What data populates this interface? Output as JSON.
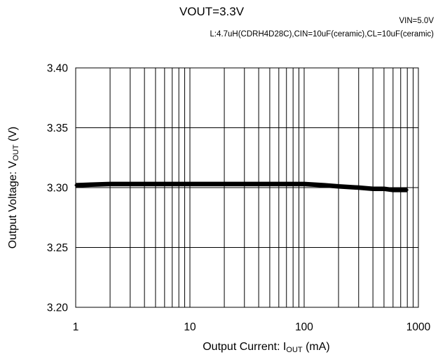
{
  "chart_data": {
    "type": "line",
    "title": "VOUT=3.3V",
    "subtitle_right": "VIN=5.0V",
    "subtitle": "L:4.7uH(CDRH4D28C),CIN=10uF(ceramic),CL=10uF(ceramic)",
    "xlabel": {
      "prefix": "Output Current: I",
      "sub": "OUT",
      "suffix": " (mA)"
    },
    "ylabel": {
      "prefix": "Output Voltage: V",
      "sub": "OUT",
      "suffix": " (V)"
    },
    "x_scale": "log",
    "xlim": [
      1,
      1000
    ],
    "ylim": [
      3.2,
      3.4
    ],
    "x_ticks": [
      1,
      10,
      100,
      1000
    ],
    "x_tick_labels": [
      "1",
      "10",
      "100",
      "1000"
    ],
    "y_ticks": [
      3.2,
      3.25,
      3.3,
      3.35,
      3.4
    ],
    "y_tick_labels": [
      "3.20",
      "3.25",
      "3.30",
      "3.35",
      "3.40"
    ],
    "grid": true,
    "series": [
      {
        "color": "#000000",
        "x": [
          1,
          2,
          3,
          5,
          7,
          10,
          20,
          50,
          100,
          150,
          200,
          300,
          400,
          500,
          600,
          800
        ],
        "y": [
          3.302,
          3.303,
          3.303,
          3.303,
          3.303,
          3.303,
          3.303,
          3.303,
          3.303,
          3.302,
          3.301,
          3.3,
          3.299,
          3.299,
          3.298,
          3.298
        ]
      }
    ]
  }
}
